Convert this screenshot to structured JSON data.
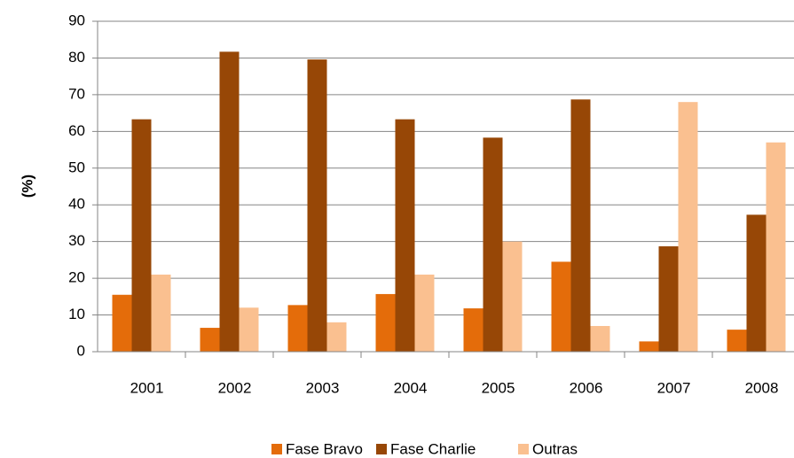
{
  "chart_data": {
    "type": "bar",
    "y_label": "(%)",
    "categories": [
      "2001",
      "2002",
      "2003",
      "2004",
      "2005",
      "2006",
      "2007",
      "2008"
    ],
    "series": [
      {
        "name": "Fase Bravo",
        "color": "#e46c0a",
        "values": [
          15.5,
          6.5,
          12.7,
          15.7,
          11.8,
          24.5,
          2.8,
          6
        ]
      },
      {
        "name": "Fase Charlie",
        "color": "#974706",
        "values": [
          63.3,
          81.7,
          79.6,
          63.3,
          58.3,
          68.7,
          28.7,
          37.3
        ]
      },
      {
        "name": "Outras",
        "color": "#fac090",
        "values": [
          21,
          12,
          8,
          21,
          30,
          7,
          68,
          57
        ]
      }
    ],
    "ylim": [
      0,
      90
    ],
    "yticks": [
      0,
      10,
      20,
      30,
      40,
      50,
      60,
      70,
      80,
      90
    ],
    "grid": true,
    "legend": "bottom"
  }
}
